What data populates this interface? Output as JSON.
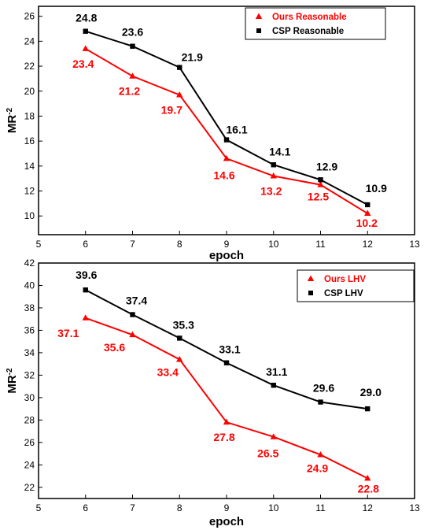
{
  "chart_data": [
    {
      "type": "line",
      "xlabel": "epoch",
      "ylabel": "MR",
      "ylabel_sup": "-2",
      "xlim": [
        5,
        13
      ],
      "ylim": [
        8.5,
        26.8
      ],
      "xticks": [
        5,
        6,
        7,
        8,
        9,
        10,
        11,
        12,
        13
      ],
      "yticks": [
        10,
        12,
        14,
        16,
        18,
        20,
        22,
        24,
        26
      ],
      "x": [
        6,
        7,
        8,
        9,
        10,
        11,
        12
      ],
      "series": [
        {
          "name": "Ours Reasonable",
          "color": "#ff0000",
          "marker": "triangle",
          "values": [
            23.4,
            21.2,
            19.7,
            14.6,
            13.2,
            12.5,
            10.2
          ],
          "labels": [
            "23.4",
            "21.2",
            "19.7",
            "14.6",
            "13.2",
            "12.5",
            "10.2"
          ]
        },
        {
          "name": "CSP Reasonable",
          "color": "#000000",
          "marker": "square",
          "values": [
            24.8,
            23.6,
            21.9,
            16.1,
            14.1,
            12.9,
            10.9
          ],
          "labels": [
            "24.8",
            "23.6",
            "21.9",
            "16.1",
            "14.1",
            "12.9",
            "10.9"
          ]
        }
      ],
      "legend_position": "top-right"
    },
    {
      "type": "line",
      "xlabel": "epoch",
      "ylabel": "MR",
      "ylabel_sup": "-2",
      "xlim": [
        5,
        13
      ],
      "ylim": [
        21,
        42
      ],
      "xticks": [
        5,
        6,
        7,
        8,
        9,
        10,
        11,
        12,
        13
      ],
      "yticks": [
        22,
        24,
        26,
        28,
        30,
        32,
        34,
        36,
        38,
        40,
        42
      ],
      "x": [
        6,
        7,
        8,
        9,
        10,
        11,
        12
      ],
      "series": [
        {
          "name": "Ours LHV",
          "color": "#ff0000",
          "marker": "triangle",
          "values": [
            37.1,
            35.6,
            33.4,
            27.8,
            26.5,
            24.9,
            22.8
          ],
          "labels": [
            "37.1",
            "35.6",
            "33.4",
            "27.8",
            "26.5",
            "24.9",
            "22.8"
          ]
        },
        {
          "name": "CSP LHV",
          "color": "#000000",
          "marker": "square",
          "values": [
            39.6,
            37.4,
            35.3,
            33.1,
            31.1,
            29.6,
            29.0
          ],
          "labels": [
            "39.6",
            "37.4",
            "35.3",
            "33.1",
            "31.1",
            "29.6",
            "29.0"
          ]
        }
      ],
      "legend_position": "top-right"
    }
  ]
}
